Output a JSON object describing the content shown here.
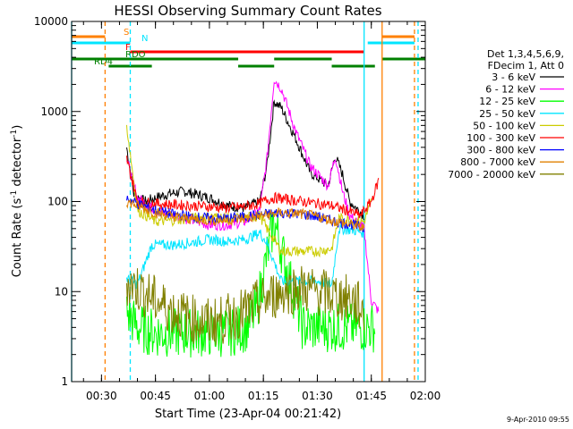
{
  "chart_data": {
    "type": "line",
    "title": "HESSI Observing Summary Count Rates",
    "xlabel": "Start Time (23-Apr-04 00:21:42)",
    "ylabel": "Count Rate (s⁻¹ detector⁻¹)",
    "ylabel_main": "Count Rate (s",
    "ylabel_sup1": "-1",
    "ylabel_mid": " detector",
    "ylabel_sup2": "-1",
    "ylabel_end": ")",
    "x_domain": [
      "00:21:42",
      "02:00:00"
    ],
    "y_scale": "log",
    "ylim": [
      1,
      10000
    ],
    "x_ticks": [
      "00:30",
      "00:45",
      "01:00",
      "01:15",
      "01:30",
      "01:45",
      "02:00"
    ],
    "y_ticks": [
      "1",
      "10",
      "100",
      "1000",
      "10000"
    ],
    "grid": false,
    "legend": {
      "header_line1": "Det 1,3,4,5,6,9,",
      "header_line2": "FDecim 1, Att 0",
      "placement": "right"
    },
    "footer_date": "9-Apr-2010 09:55",
    "flag_labels": {
      "saa": "S",
      "night": "N",
      "flare": "F",
      "rdo": "RDO",
      "rd4": "RD4"
    },
    "flag_colors": {
      "saa": "#ff8000",
      "night": "#00e5ff",
      "flare": "#ff0000",
      "rdo": "#008000",
      "rd4": "#008000"
    },
    "flag_bars": {
      "saa": [
        [
          "00:21:42",
          "00:31:00"
        ],
        [
          "01:48:00",
          "01:57:00"
        ]
      ],
      "night": [
        [
          "00:21:42",
          "00:38:00"
        ],
        [
          "01:44:00",
          "01:57:00"
        ]
      ],
      "flare": [
        [
          "00:38:00",
          "01:43:00"
        ]
      ],
      "rdo": [
        [
          "00:21:42",
          "01:08:00"
        ],
        [
          "01:18:00",
          "01:34:00"
        ],
        [
          "01:48:00",
          "02:00:00"
        ]
      ],
      "rd4": [
        [
          "00:32:00",
          "00:44:00"
        ],
        [
          "01:08:00",
          "01:18:00"
        ],
        [
          "01:34:00",
          "01:46:00"
        ]
      ]
    },
    "vertical_markers": [
      {
        "time": "00:21:42",
        "color": "#00e5ff",
        "style": "solid"
      },
      {
        "time": "00:31:00",
        "color": "#ff8000",
        "style": "dashed"
      },
      {
        "time": "00:38:00",
        "color": "#00e5ff",
        "style": "dashed"
      },
      {
        "time": "01:43:00",
        "color": "#00e5ff",
        "style": "solid"
      },
      {
        "time": "01:48:00",
        "color": "#ff8000",
        "style": "solid"
      },
      {
        "time": "01:57:00",
        "color": "#ff8000",
        "style": "dashed"
      },
      {
        "time": "01:58:00",
        "color": "#00e5ff",
        "style": "dashed"
      }
    ],
    "series": [
      {
        "name": "3 - 6 keV",
        "color": "#000000",
        "x": [
          "00:37:00",
          "00:39:00",
          "00:42:00",
          "00:48:00",
          "00:53:00",
          "01:00:00",
          "01:05:00",
          "01:10:00",
          "01:14:00",
          "01:16:00",
          "01:18:00",
          "01:20:00",
          "01:24:00",
          "01:28:00",
          "01:33:00",
          "01:35:00",
          "01:37:00",
          "01:39:00",
          "01:43:00"
        ],
        "values": [
          400,
          120,
          100,
          120,
          130,
          110,
          90,
          85,
          100,
          250,
          1300,
          1100,
          500,
          210,
          150,
          320,
          200,
          100,
          70
        ]
      },
      {
        "name": "6 - 12 keV",
        "color": "#ff00ff",
        "x": [
          "00:37:00",
          "00:40:00",
          "00:45:00",
          "00:50:00",
          "00:55:00",
          "01:00:00",
          "01:05:00",
          "01:10:00",
          "01:14:00",
          "01:16:00",
          "01:18:00",
          "01:20:00",
          "01:24:00",
          "01:28:00",
          "01:33:00",
          "01:35:00",
          "01:37:00",
          "01:39:00",
          "01:43:00",
          "01:45:00",
          "01:47:00"
        ],
        "values": [
          300,
          110,
          80,
          70,
          62,
          55,
          55,
          60,
          80,
          300,
          2300,
          1800,
          600,
          250,
          150,
          320,
          130,
          70,
          50,
          8,
          6
        ]
      },
      {
        "name": "12 - 25 keV",
        "color": "#00ff00",
        "x": [
          "00:37:00",
          "00:40:00",
          "00:45:00",
          "00:50:00",
          "00:55:00",
          "01:00:00",
          "01:05:00",
          "01:10:00",
          "01:13:00",
          "01:16:00",
          "01:18:00",
          "01:22:00",
          "01:26:00",
          "01:30:00",
          "01:33:00",
          "01:35:00",
          "01:40:00",
          "01:43:00",
          "01:46:00"
        ],
        "values": [
          6,
          4,
          3.5,
          3.5,
          3.5,
          3.5,
          3.5,
          4,
          6,
          25,
          60,
          15,
          4,
          4,
          4,
          4,
          4,
          4,
          4
        ]
      },
      {
        "name": "25 - 50 keV",
        "color": "#00e5ff",
        "x": [
          "00:37:00",
          "00:40:00",
          "00:44:00",
          "00:50:00",
          "00:55:00",
          "01:00:00",
          "01:05:00",
          "01:10:00",
          "01:14:00",
          "01:16:00",
          "01:20:00",
          "01:25:00",
          "01:30:00",
          "01:34:00",
          "01:36:00",
          "01:40:00",
          "01:43:00"
        ],
        "values": [
          14,
          12,
          33,
          33,
          35,
          38,
          36,
          38,
          45,
          35,
          13,
          13,
          13,
          12,
          50,
          48,
          45
        ]
      },
      {
        "name": "50 - 100 keV",
        "color": "#cccc00",
        "x": [
          "00:37:00",
          "00:40:00",
          "00:45:00",
          "00:50:00",
          "00:55:00",
          "01:00:00",
          "01:05:00",
          "01:10:00",
          "01:14:00",
          "01:16:00",
          "01:20:00",
          "01:25:00",
          "01:30:00",
          "01:34:00",
          "01:36:00",
          "01:40:00",
          "01:43:00",
          "01:45:00"
        ],
        "values": [
          700,
          80,
          60,
          62,
          65,
          68,
          66,
          66,
          70,
          50,
          28,
          28,
          28,
          30,
          65,
          62,
          60,
          100
        ]
      },
      {
        "name": "100 - 300 keV",
        "color": "#ff0000",
        "x": [
          "00:37:00",
          "00:40:00",
          "00:45:00",
          "00:50:00",
          "00:55:00",
          "01:00:00",
          "01:05:00",
          "01:10:00",
          "01:14:00",
          "01:16:00",
          "01:18:00",
          "01:22:00",
          "01:26:00",
          "01:30:00",
          "01:34:00",
          "01:38:00",
          "01:42:00",
          "01:45:00",
          "01:47:00"
        ],
        "values": [
          300,
          100,
          95,
          92,
          90,
          88,
          85,
          88,
          95,
          105,
          110,
          105,
          100,
          95,
          90,
          80,
          70,
          100,
          170
        ]
      },
      {
        "name": "300 - 800 keV",
        "color": "#0000ff",
        "x": [
          "00:37:00",
          "00:40:00",
          "00:45:00",
          "00:50:00",
          "00:55:00",
          "01:00:00",
          "01:05:00",
          "01:10:00",
          "01:15:00",
          "01:20:00",
          "01:25:00",
          "01:30:00",
          "01:35:00",
          "01:40:00",
          "01:43:00"
        ],
        "values": [
          110,
          95,
          80,
          72,
          68,
          65,
          65,
          68,
          72,
          75,
          73,
          68,
          60,
          55,
          50
        ]
      },
      {
        "name": "800 - 7000 keV",
        "color": "#e08000",
        "x": [
          "00:37:00",
          "00:40:00",
          "00:45:00",
          "00:50:00",
          "00:55:00",
          "01:00:00",
          "01:05:00",
          "01:10:00",
          "01:15:00",
          "01:20:00",
          "01:25:00",
          "01:30:00",
          "01:35:00",
          "01:40:00",
          "01:43:00"
        ],
        "values": [
          100,
          90,
          75,
          68,
          64,
          62,
          62,
          65,
          70,
          75,
          73,
          68,
          60,
          55,
          50
        ]
      },
      {
        "name": "7000 - 20000 keV",
        "color": "#808000",
        "x": [
          "00:37:00",
          "00:40:00",
          "00:45:00",
          "00:50:00",
          "00:55:00",
          "01:00:00",
          "01:05:00",
          "01:10:00",
          "01:15:00",
          "01:20:00",
          "01:25:00",
          "01:30:00",
          "01:35:00",
          "01:40:00",
          "01:43:00"
        ],
        "values": [
          13,
          11,
          8,
          6,
          5,
          4.5,
          5,
          6,
          8,
          10,
          11,
          10,
          9,
          8,
          6
        ]
      }
    ]
  }
}
